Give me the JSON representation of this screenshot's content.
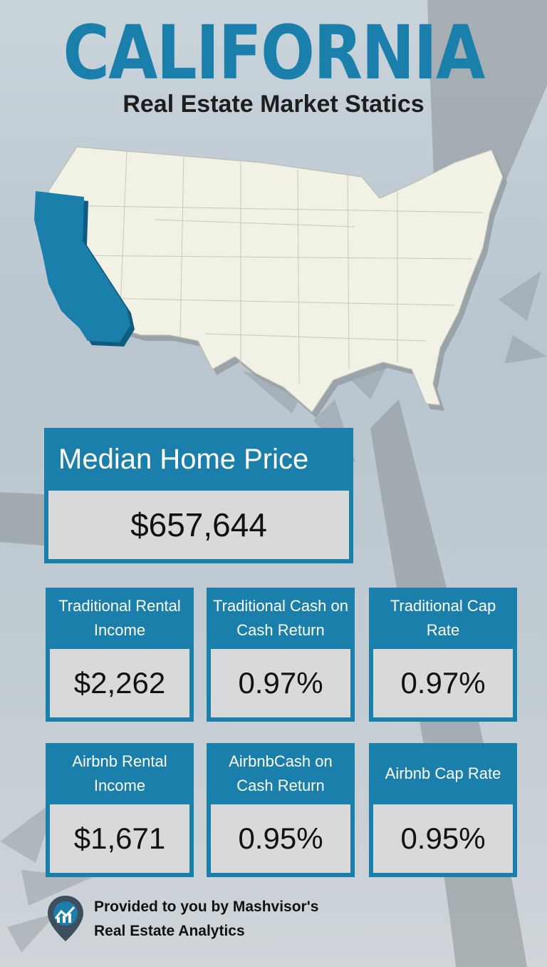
{
  "header": {
    "title": "CALIFORNIA",
    "subtitle": "Real Estate Market Statics"
  },
  "colors": {
    "accent": "#1b7fac",
    "map_land": "#f2f1e6",
    "highlight_state": "#1b7fac"
  },
  "map": {
    "highlighted_state": "California",
    "icon": "us-map"
  },
  "median": {
    "label": "Median Home Price",
    "value": "$657,644"
  },
  "stats": [
    {
      "label": "Traditional Rental Income",
      "value": "$2,262"
    },
    {
      "label": "Traditional Cash on Cash Return",
      "value": "0.97%"
    },
    {
      "label": "Traditional Cap Rate",
      "value": "0.97%"
    },
    {
      "label": "Airbnb Rental Income",
      "value": "$1,671"
    },
    {
      "label": "AirbnbCash on Cash Return",
      "value": "0.95%"
    },
    {
      "label": "Airbnb Cap Rate",
      "value": "0.95%"
    }
  ],
  "footer": {
    "line1": "Provided to you by Mashvisor's",
    "line2": "Real Estate Analytics",
    "logo_icon": "mashvisor-pin-icon"
  }
}
